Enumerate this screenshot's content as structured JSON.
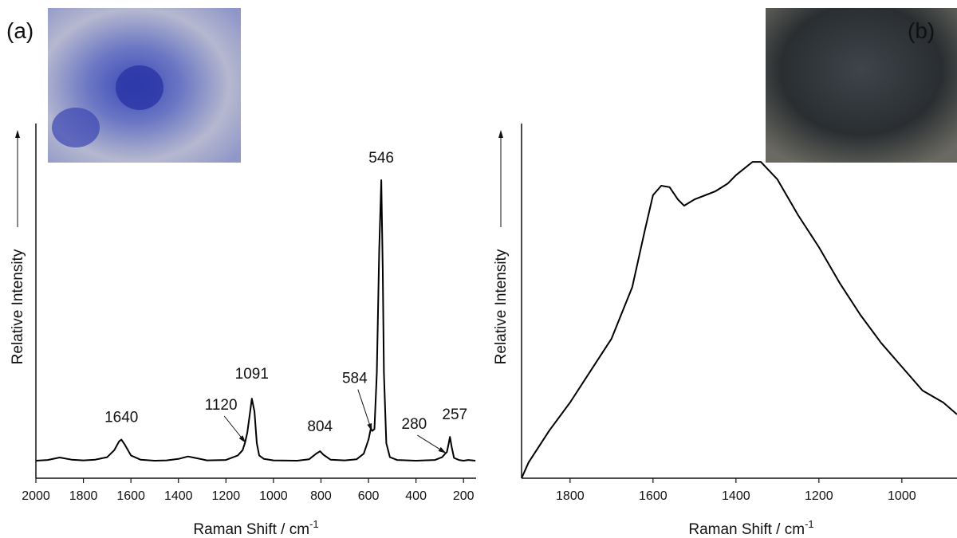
{
  "chart_data": [
    {
      "type": "line",
      "panel_label": "(a)",
      "x_label": "Raman Shift / cm",
      "x_label_sup": "-1",
      "y_label": "Relative Intensity",
      "xlim": [
        2000,
        147
      ],
      "ylim": [
        0,
        100
      ],
      "xticks": [
        2000,
        1800,
        1600,
        1400,
        1200,
        1000,
        800,
        600,
        400,
        200
      ],
      "color": "#000000",
      "x": [
        2000,
        1950,
        1900,
        1850,
        1800,
        1750,
        1700,
        1670,
        1650,
        1640,
        1625,
        1600,
        1560,
        1500,
        1450,
        1400,
        1360,
        1330,
        1280,
        1200,
        1150,
        1130,
        1120,
        1110,
        1100,
        1091,
        1080,
        1070,
        1060,
        1040,
        1000,
        900,
        850,
        820,
        804,
        790,
        760,
        700,
        650,
        620,
        600,
        590,
        584,
        575,
        565,
        555,
        546,
        540,
        535,
        525,
        510,
        480,
        400,
        320,
        290,
        280,
        270,
        262,
        257,
        250,
        240,
        220,
        200,
        180,
        150
      ],
      "values": [
        5,
        5.2,
        5.9,
        5.3,
        5.1,
        5.3,
        6,
        8,
        10.5,
        11,
        9.5,
        6.5,
        5.3,
        5,
        5.1,
        5.5,
        6.2,
        5.8,
        5.1,
        5.2,
        6.5,
        8,
        10,
        13,
        18,
        22.7,
        19,
        10,
        6.5,
        5.5,
        5.1,
        5,
        5.4,
        7,
        7.7,
        6.7,
        5.3,
        5.1,
        5.4,
        7,
        11,
        14.2,
        13.5,
        14,
        30,
        65,
        85,
        60,
        30,
        10,
        6,
        5.2,
        5,
        5.2,
        6,
        6.8,
        7.5,
        10,
        11.8,
        9,
        5.8,
        5.2,
        5,
        5.2,
        5
      ],
      "peak_labels": [
        1640,
        1120,
        1091,
        804,
        584,
        546,
        280,
        257
      ]
    },
    {
      "type": "line",
      "panel_label": "(b)",
      "x_label": "Raman Shift / cm",
      "x_label_sup": "-1",
      "y_label": "Relative Intensity",
      "xlim": [
        1917,
        867
      ],
      "ylim": [
        0,
        100
      ],
      "xticks": [
        1800,
        1600,
        1400,
        1200,
        1000
      ],
      "color": "#000000",
      "x": [
        1917,
        1900,
        1850,
        1800,
        1750,
        1700,
        1650,
        1620,
        1600,
        1580,
        1560,
        1540,
        1525,
        1500,
        1450,
        1420,
        1400,
        1360,
        1340,
        1300,
        1250,
        1200,
        1150,
        1100,
        1050,
        1000,
        950,
        900,
        867
      ],
      "values": [
        0,
        4.5,
        13.6,
        21.6,
        30.7,
        39.8,
        54.5,
        70.5,
        80.7,
        83.4,
        83,
        79.5,
        77.7,
        79.5,
        81.8,
        84,
        86.4,
        90.2,
        90.2,
        85.2,
        75,
        65.9,
        55.7,
        46.6,
        38.6,
        31.8,
        25,
        21.6,
        18.2
      ]
    }
  ]
}
